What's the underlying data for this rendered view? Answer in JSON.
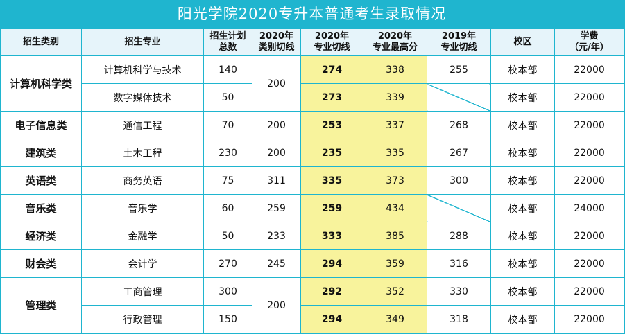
{
  "title": "阳光学院2020专升本普通考生录取情况",
  "headers": {
    "category": "招生类别",
    "major": "招生专业",
    "plan_l1": "招生计划",
    "plan_l2": "总数",
    "cat2020_l1": "2020年",
    "cat2020_l2": "类别切线",
    "cut2020_l1": "2020年",
    "cut2020_l2": "专业切线",
    "max2020_l1": "2020年",
    "max2020_l2": "专业最高分",
    "cut2019_l1": "2019年",
    "cut2019_l2": "专业切线",
    "campus": "校区",
    "fee_l1": "学费",
    "fee_l2": "（元/年）"
  },
  "rows": [
    {
      "category": "计算机科学类",
      "major": "计算机科学与技术",
      "plan": "140",
      "cat_cut": "200",
      "cut2020": "274",
      "max2020": "338",
      "cut2019": "255",
      "campus": "校本部",
      "fee": "22000"
    },
    {
      "category": "",
      "major": "数字媒体技术",
      "plan": "50",
      "cat_cut": "",
      "cut2020": "273",
      "max2020": "339",
      "cut2019": "",
      "campus": "校本部",
      "fee": "22000"
    },
    {
      "category": "电子信息类",
      "major": "通信工程",
      "plan": "70",
      "cat_cut": "200",
      "cut2020": "253",
      "max2020": "337",
      "cut2019": "268",
      "campus": "校本部",
      "fee": "22000"
    },
    {
      "category": "建筑类",
      "major": "土木工程",
      "plan": "230",
      "cat_cut": "200",
      "cut2020": "235",
      "max2020": "335",
      "cut2019": "267",
      "campus": "校本部",
      "fee": "22000"
    },
    {
      "category": "英语类",
      "major": "商务英语",
      "plan": "75",
      "cat_cut": "311",
      "cut2020": "335",
      "max2020": "373",
      "cut2019": "300",
      "campus": "校本部",
      "fee": "22000"
    },
    {
      "category": "音乐类",
      "major": "音乐学",
      "plan": "60",
      "cat_cut": "259",
      "cut2020": "259",
      "max2020": "434",
      "cut2019": "",
      "campus": "校本部",
      "fee": "24000"
    },
    {
      "category": "经济类",
      "major": "金融学",
      "plan": "50",
      "cat_cut": "233",
      "cut2020": "333",
      "max2020": "385",
      "cut2019": "288",
      "campus": "校本部",
      "fee": "22000"
    },
    {
      "category": "财会类",
      "major": "会计学",
      "plan": "270",
      "cat_cut": "245",
      "cut2020": "294",
      "max2020": "359",
      "cut2019": "316",
      "campus": "校本部",
      "fee": "22000"
    },
    {
      "category": "管理类",
      "major": "工商管理",
      "plan": "300",
      "cat_cut": "200",
      "cut2020": "292",
      "max2020": "352",
      "cut2019": "330",
      "campus": "校本部",
      "fee": "22000"
    },
    {
      "category": "",
      "major": "行政管理",
      "plan": "150",
      "cat_cut": "",
      "cut2020": "294",
      "max2020": "349",
      "cut2019": "318",
      "campus": "校本部",
      "fee": "22000"
    }
  ]
}
